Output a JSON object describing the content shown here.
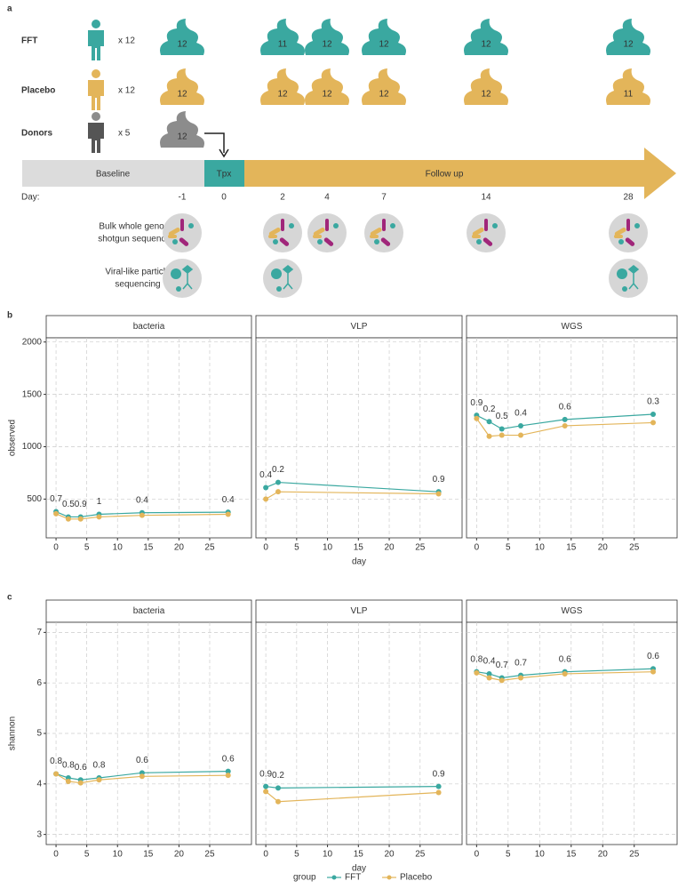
{
  "panel_labels": [
    "a",
    "b",
    "c"
  ],
  "diagram": {
    "days": [
      "-1",
      "0",
      "2",
      "4",
      "7",
      "14",
      "28"
    ],
    "day_label": "Day:",
    "groups": [
      {
        "name": "FFT",
        "count": "x 12",
        "color": "#3aa8a0",
        "samples": [
          12,
          null,
          11,
          12,
          12,
          12,
          12
        ]
      },
      {
        "name": "Placebo",
        "count": "x 12",
        "color": "#e3b55a",
        "samples": [
          12,
          null,
          12,
          12,
          12,
          12,
          11
        ]
      },
      {
        "name": "Donors",
        "count": "x 5",
        "color": "#8c8c8c",
        "samples": [
          12,
          null,
          null,
          null,
          null,
          null,
          null
        ]
      }
    ],
    "phases": {
      "baseline": "Baseline",
      "tpx": "Tpx",
      "followup": "Follow up"
    },
    "sequencing": [
      {
        "label": [
          "Bulk whole genome",
          "shotgun sequencing"
        ],
        "present": [
          true,
          false,
          true,
          true,
          true,
          true,
          true
        ]
      },
      {
        "label": [
          "Viral-like particle",
          "sequencing"
        ],
        "present": [
          true,
          false,
          true,
          false,
          false,
          false,
          true
        ]
      }
    ]
  },
  "legend_title": "group",
  "chart_data": [
    {
      "type": "line",
      "title": "bacteria",
      "ylabel": "observed",
      "xlabel": "day",
      "x": [
        0,
        2,
        4,
        7,
        14,
        28
      ],
      "xlim": [
        -1.6,
        31.8
      ],
      "xticks": [
        0,
        5,
        10,
        15,
        20,
        25
      ],
      "ylim": [
        130,
        2040
      ],
      "yticks": [
        500,
        1000,
        1500,
        2000
      ],
      "grid": true,
      "series": [
        {
          "name": "FFT",
          "color": "#3aa8a0",
          "values": [
            380,
            330,
            330,
            355,
            370,
            375
          ]
        },
        {
          "name": "Placebo",
          "color": "#e3b55a",
          "values": [
            360,
            310,
            310,
            330,
            345,
            355
          ]
        }
      ],
      "pvalues": [
        "0.7",
        "0.5",
        "0.9",
        "1",
        "0.4",
        "0.4"
      ]
    },
    {
      "type": "line",
      "title": "VLP",
      "xlabel": "day",
      "x": [
        0,
        2,
        28
      ],
      "xlim": [
        -1.6,
        31.8
      ],
      "xticks": [
        0,
        5,
        10,
        15,
        20,
        25
      ],
      "ylim": [
        130,
        2040
      ],
      "yticks": [
        500,
        1000,
        1500,
        2000
      ],
      "grid": true,
      "series": [
        {
          "name": "FFT",
          "color": "#3aa8a0",
          "values": [
            610,
            660,
            570
          ]
        },
        {
          "name": "Placebo",
          "color": "#e3b55a",
          "values": [
            500,
            570,
            550
          ]
        }
      ],
      "pvalues": [
        "0.4",
        "0.2",
        "0.9"
      ]
    },
    {
      "type": "line",
      "title": "WGS",
      "xlabel": "day",
      "x": [
        0,
        2,
        4,
        7,
        14,
        28
      ],
      "xlim": [
        -1.6,
        31.8
      ],
      "xticks": [
        0,
        5,
        10,
        15,
        20,
        25
      ],
      "ylim": [
        130,
        2040
      ],
      "yticks": [
        500,
        1000,
        1500,
        2000
      ],
      "grid": true,
      "series": [
        {
          "name": "FFT",
          "color": "#3aa8a0",
          "values": [
            1300,
            1240,
            1170,
            1200,
            1260,
            1310
          ]
        },
        {
          "name": "Placebo",
          "color": "#e3b55a",
          "values": [
            1270,
            1100,
            1110,
            1110,
            1200,
            1230
          ]
        }
      ],
      "pvalues": [
        "0.9",
        "0.2",
        "0.5",
        "0.4",
        "0.6",
        "0.3"
      ]
    },
    {
      "type": "line",
      "title": "bacteria",
      "ylabel": "shannon",
      "xlabel": "day",
      "x": [
        0,
        2,
        4,
        7,
        14,
        28
      ],
      "xlim": [
        -1.6,
        31.8
      ],
      "xticks": [
        0,
        5,
        10,
        15,
        20,
        25
      ],
      "ylim": [
        2.8,
        7.2
      ],
      "yticks": [
        3,
        4,
        5,
        6,
        7
      ],
      "grid": true,
      "series": [
        {
          "name": "FFT",
          "color": "#3aa8a0",
          "values": [
            4.2,
            4.12,
            4.08,
            4.12,
            4.22,
            4.25
          ]
        },
        {
          "name": "Placebo",
          "color": "#e3b55a",
          "values": [
            4.2,
            4.05,
            4.02,
            4.08,
            4.15,
            4.17
          ]
        }
      ],
      "pvalues": [
        "0.8",
        "0.8",
        "0.6",
        "0.8",
        "0.6",
        "0.6"
      ]
    },
    {
      "type": "line",
      "title": "VLP",
      "xlabel": "day",
      "x": [
        0,
        2,
        28
      ],
      "xlim": [
        -1.6,
        31.8
      ],
      "xticks": [
        0,
        5,
        10,
        15,
        20,
        25
      ],
      "ylim": [
        2.8,
        7.2
      ],
      "yticks": [
        3,
        4,
        5,
        6,
        7
      ],
      "grid": true,
      "series": [
        {
          "name": "FFT",
          "color": "#3aa8a0",
          "values": [
            3.95,
            3.92,
            3.95
          ]
        },
        {
          "name": "Placebo",
          "color": "#e3b55a",
          "values": [
            3.85,
            3.65,
            3.83
          ]
        }
      ],
      "pvalues": [
        "0.9",
        "0.2",
        "0.9"
      ]
    },
    {
      "type": "line",
      "title": "WGS",
      "xlabel": "day",
      "x": [
        0,
        2,
        4,
        7,
        14,
        28
      ],
      "xlim": [
        -1.6,
        31.8
      ],
      "xticks": [
        0,
        5,
        10,
        15,
        20,
        25
      ],
      "ylim": [
        2.8,
        7.2
      ],
      "yticks": [
        3,
        4,
        5,
        6,
        7
      ],
      "grid": true,
      "series": [
        {
          "name": "FFT",
          "color": "#3aa8a0",
          "values": [
            6.22,
            6.18,
            6.1,
            6.15,
            6.22,
            6.28
          ]
        },
        {
          "name": "Placebo",
          "color": "#e3b55a",
          "values": [
            6.2,
            6.1,
            6.05,
            6.1,
            6.18,
            6.22
          ]
        }
      ],
      "pvalues": [
        "0.8",
        "0.4",
        "0.7",
        "0.7",
        "0.6",
        "0.6"
      ]
    }
  ]
}
